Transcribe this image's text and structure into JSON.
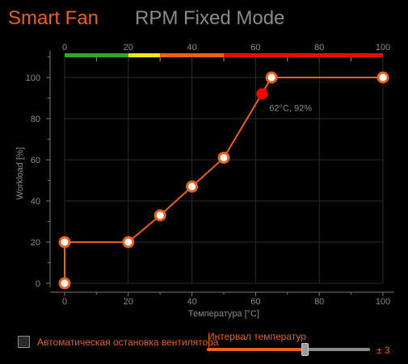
{
  "tabs": {
    "active": "Smart Fan",
    "inactive": "RPM Fixed Mode"
  },
  "colors": {
    "accent": "#e8601c",
    "point_fill": "#ffffff",
    "current_point": "#ff0000",
    "axis_text": "#8a8a8a",
    "grid": "#2b2b2b",
    "inactive_tab": "#8a8a8a"
  },
  "chart_data": {
    "type": "line",
    "xlabel": "Температура [°C]",
    "ylabel": "Workload [%]",
    "xlim": [
      0,
      100
    ],
    "ylim": [
      0,
      110
    ],
    "x_ticks": [
      0,
      20,
      40,
      60,
      80,
      100
    ],
    "y_ticks": [
      0,
      20,
      40,
      60,
      80,
      100
    ],
    "grid": true,
    "series": [
      {
        "points": [
          [
            0,
            0
          ],
          [
            0,
            20
          ],
          [
            20,
            20
          ],
          [
            30,
            33
          ],
          [
            40,
            47
          ],
          [
            50,
            61
          ],
          [
            65,
            100
          ],
          [
            100,
            100
          ]
        ]
      }
    ],
    "current_point": {
      "x": 62,
      "y": 92,
      "label": "62°C, 92%"
    },
    "temperature_scale": {
      "ticks": [
        0,
        20,
        40,
        60,
        80,
        100
      ],
      "bands": [
        {
          "from": 0,
          "to": 20,
          "color": "#2ea822"
        },
        {
          "from": 20,
          "to": 30,
          "color": "#f2e51a"
        },
        {
          "from": 30,
          "to": 50,
          "color": "#e8601c"
        },
        {
          "from": 50,
          "to": 100,
          "color": "#e01010"
        }
      ]
    }
  },
  "controls": {
    "auto_stop_label": "Автоматическая остановка вентилятора",
    "auto_stop_checked": false,
    "interval_label": "Интервал температур",
    "interval_value": "± 3",
    "interval_slider_fraction": 0.6
  }
}
